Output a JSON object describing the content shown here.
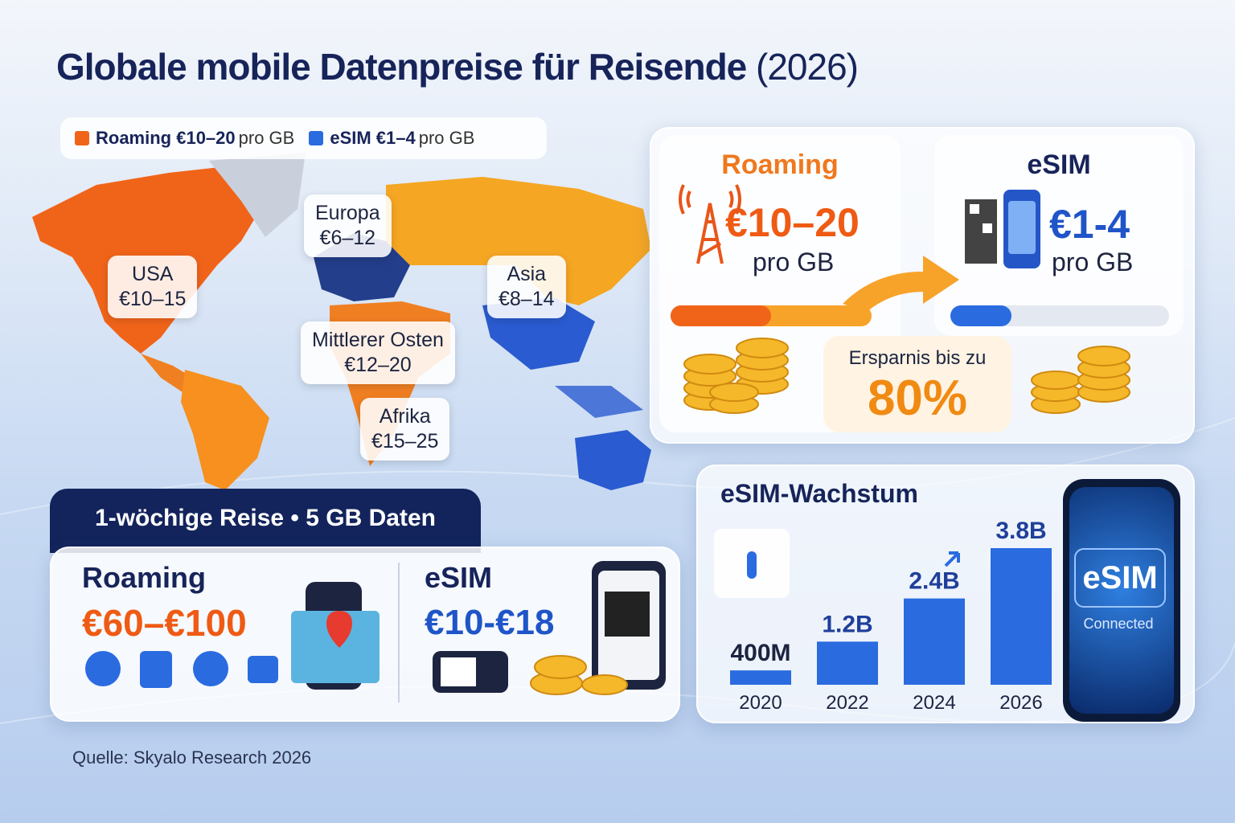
{
  "title": "Globale mobile Datenpreise für Reisende",
  "title_year": "(2026)",
  "legend": [
    {
      "name": "Roaming €10–20",
      "unit": "pro GB",
      "color": "#f0641a"
    },
    {
      "name": "eSIM €1–4",
      "unit": "pro GB",
      "color": "#2a6be0"
    }
  ],
  "map_labels": [
    {
      "region": "USA",
      "price": "€10–15"
    },
    {
      "region": "Europa",
      "price": "€6–12"
    },
    {
      "region": "Asia",
      "price": "€8–14"
    },
    {
      "region": "Mittlerer Osten",
      "price": "€12–20"
    },
    {
      "region": "Afrika",
      "price": "€15–25"
    }
  ],
  "comparison": {
    "roaming": {
      "label": "Roaming",
      "price": "€10–20",
      "unit": "pro GB"
    },
    "esim": {
      "label": "eSIM",
      "price": "€1-4",
      "unit": "pro GB"
    },
    "savings_label": "Ersparnis bis zu",
    "savings": "80%"
  },
  "trip": {
    "header": "1-wöchige Reise • 5 GB Daten",
    "roaming": {
      "label": "Roaming",
      "price": "€60–€100"
    },
    "esim": {
      "label": "eSIM",
      "price": "€10-€18"
    }
  },
  "chart_data": {
    "type": "bar",
    "title": "eSIM-Wachstum",
    "categories": [
      "2020",
      "2022",
      "2024",
      "2026"
    ],
    "values": [
      0.4,
      1.2,
      2.4,
      3.8
    ],
    "value_labels": [
      "400M",
      "1.2B",
      "2.4B",
      "3.8B"
    ],
    "color": "#2a6be0"
  },
  "phone": {
    "label": "eSIM",
    "status": "Connected"
  },
  "source": "Quelle: Skyalo Research 2026"
}
